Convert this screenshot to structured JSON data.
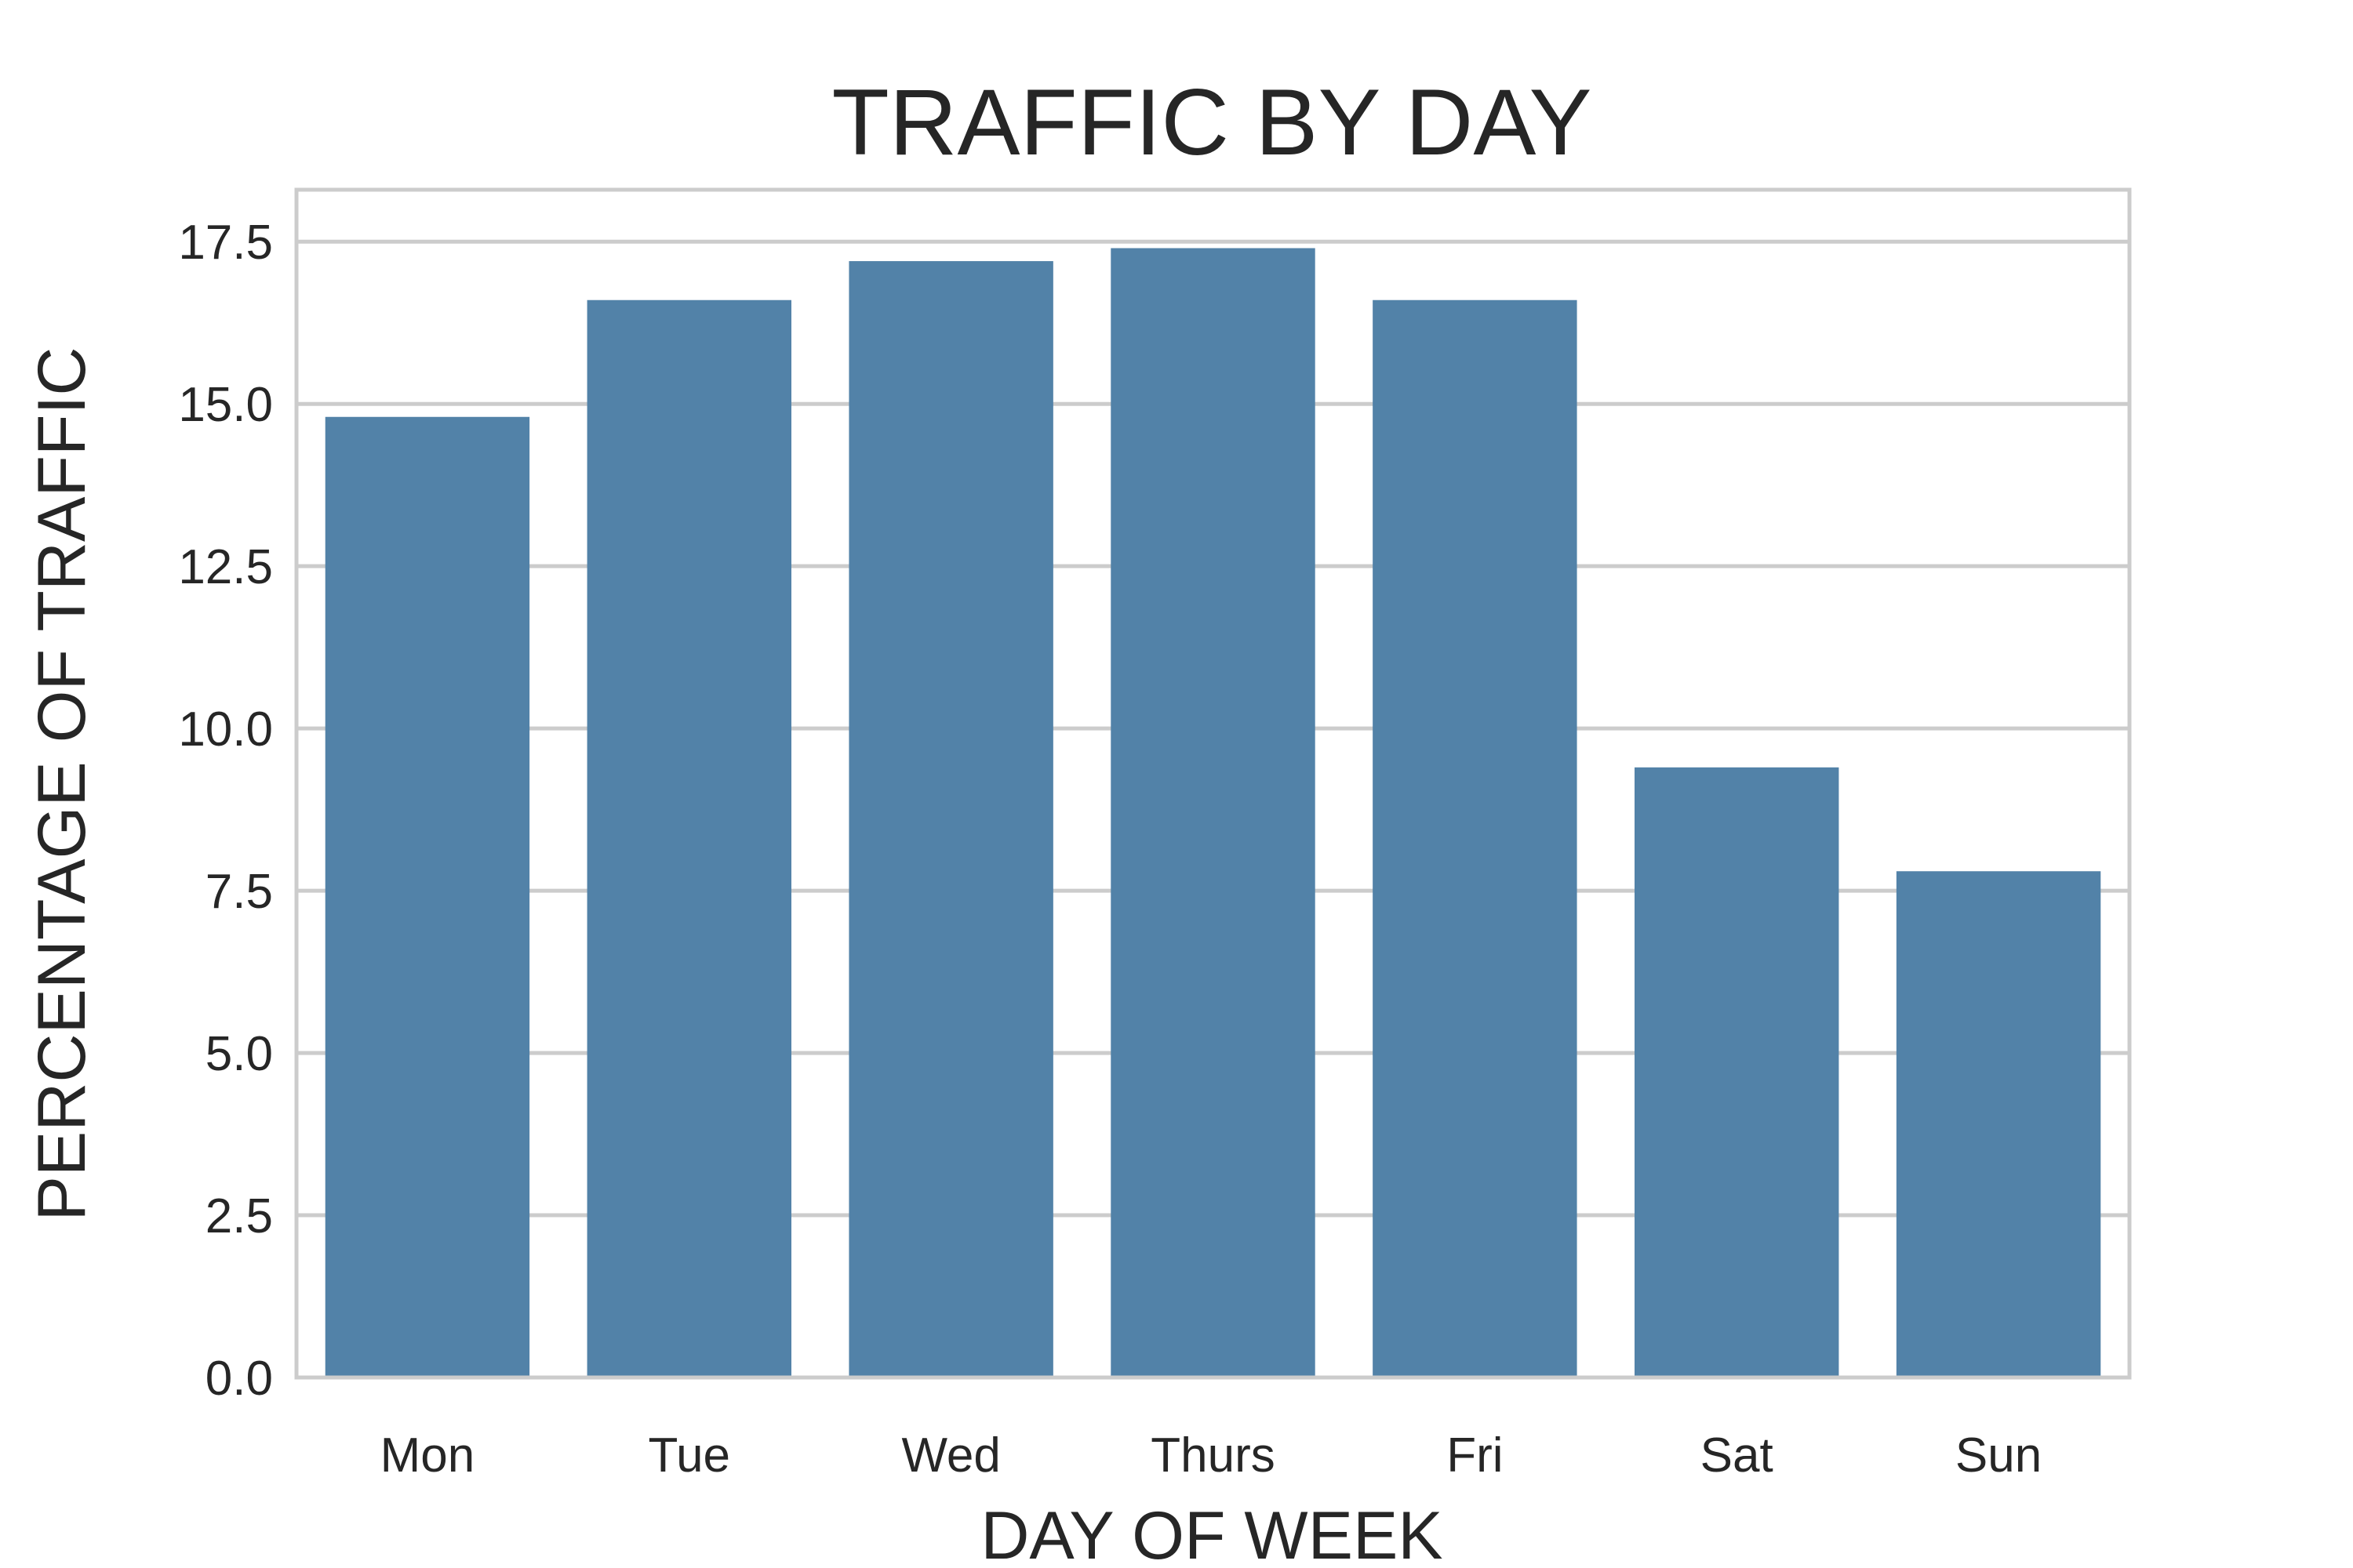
{
  "chart_data": {
    "type": "bar",
    "title": "TRAFFIC BY DAY",
    "xlabel": "DAY OF WEEK",
    "ylabel": "PERCENTAGE OF TRAFFIC",
    "categories": [
      "Mon",
      "Tue",
      "Wed",
      "Thurs",
      "Fri",
      "Sat",
      "Sun"
    ],
    "values": [
      14.8,
      16.6,
      17.2,
      17.4,
      16.6,
      9.4,
      7.8
    ],
    "ylim": [
      0,
      18.3
    ],
    "yticks": [
      "0.0",
      "2.5",
      "5.0",
      "7.5",
      "10.0",
      "12.5",
      "15.0",
      "17.5"
    ],
    "grid": true,
    "bar_color": "#5282a8",
    "grid_color": "#cccccc",
    "text_color": "#262626"
  }
}
